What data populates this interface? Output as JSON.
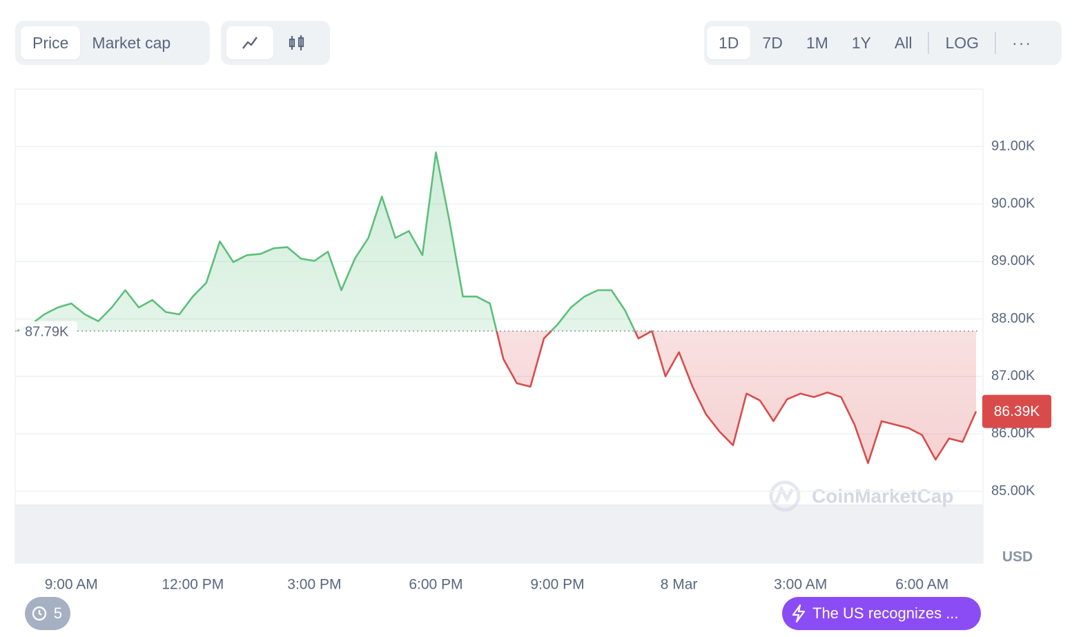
{
  "ui": {
    "tabs": [
      "Price",
      "Market cap"
    ],
    "ranges": [
      "1D",
      "7D",
      "1M",
      "1Y",
      "All",
      "LOG"
    ],
    "watermark": "CoinMarketCap",
    "history_count": "5",
    "news": "The US recognizes ..."
  },
  "chart_data": {
    "type": "line",
    "currency": "USD",
    "categories": [
      null,
      null,
      null,
      null,
      "9:00 AM",
      null,
      null,
      null,
      null,
      null,
      null,
      null,
      null,
      "12:00 PM",
      null,
      null,
      null,
      null,
      null,
      null,
      null,
      null,
      "3:00 PM",
      null,
      null,
      null,
      null,
      null,
      null,
      null,
      null,
      "6:00 PM",
      null,
      null,
      null,
      null,
      null,
      null,
      null,
      null,
      "9:00 PM",
      null,
      null,
      null,
      null,
      null,
      null,
      null,
      null,
      "8 Mar",
      null,
      null,
      null,
      null,
      null,
      null,
      null,
      null,
      "3:00 AM",
      null,
      null,
      null,
      null,
      null,
      null,
      null,
      null,
      "6:00 AM",
      null,
      null,
      null,
      null
    ],
    "values": [
      87790,
      87900,
      88080,
      88200,
      88270,
      88080,
      87960,
      88200,
      88500,
      88200,
      88330,
      88120,
      88080,
      88390,
      88630,
      89350,
      88990,
      89110,
      89130,
      89230,
      89250,
      89050,
      89010,
      89170,
      88500,
      89050,
      89410,
      90130,
      89410,
      89530,
      89110,
      90900,
      89710,
      88390,
      88390,
      88270,
      87300,
      86880,
      86820,
      87660,
      87900,
      88200,
      88390,
      88500,
      88500,
      88150,
      87660,
      87790,
      87000,
      87420,
      86820,
      86340,
      86040,
      85800,
      86700,
      86580,
      86220,
      86600,
      86700,
      86640,
      86720,
      86640,
      86160,
      85490,
      86220,
      86160,
      86100,
      85980,
      85550,
      85920,
      85860,
      86390
    ],
    "up_color": "#5bbf7a",
    "down_color": "#d94b4b",
    "reference": {
      "value": 87790,
      "label": "87.79K"
    },
    "last_price": {
      "value": 86390,
      "label": "86.39K"
    },
    "ylim": [
      83750,
      92000
    ],
    "yticks": [
      {
        "value": 85000,
        "label": "85.00K"
      },
      {
        "value": 86000,
        "label": "86.00K"
      },
      {
        "value": 87000,
        "label": "87.00K"
      },
      {
        "value": 88000,
        "label": "88.00K"
      },
      {
        "value": 89000,
        "label": "89.00K"
      },
      {
        "value": 90000,
        "label": "90.00K"
      },
      {
        "value": 91000,
        "label": "91.00K"
      }
    ],
    "grid": true
  }
}
